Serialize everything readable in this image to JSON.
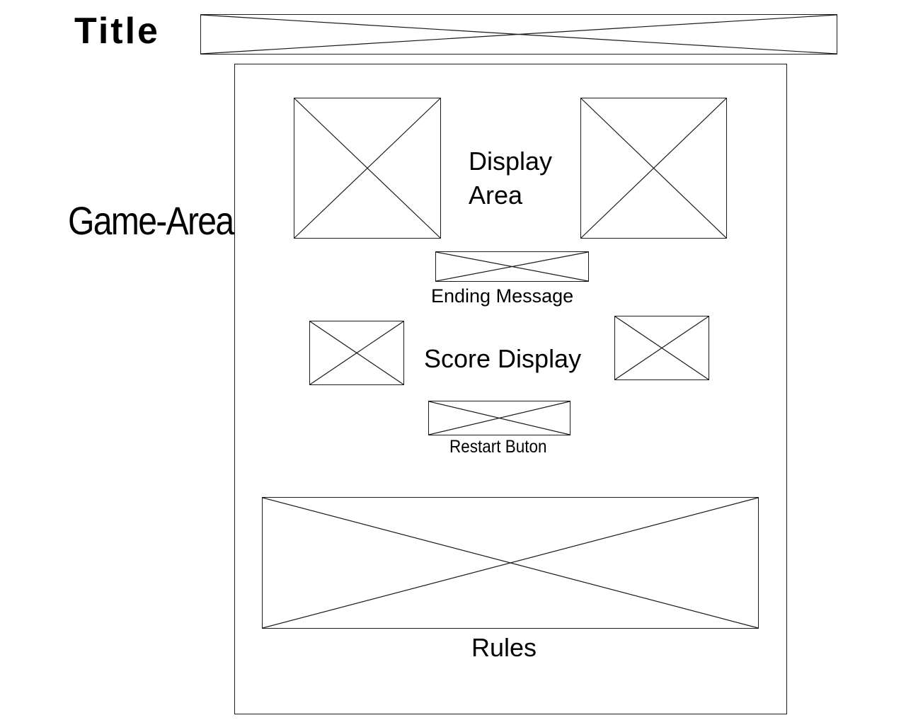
{
  "labels": {
    "title": "Title",
    "game_area": "Game-Area",
    "display_area": "Display Area",
    "ending_message": "Ending Message",
    "score_display": "Score Display",
    "restart_button": "Restart Buton",
    "rules": "Rules"
  }
}
